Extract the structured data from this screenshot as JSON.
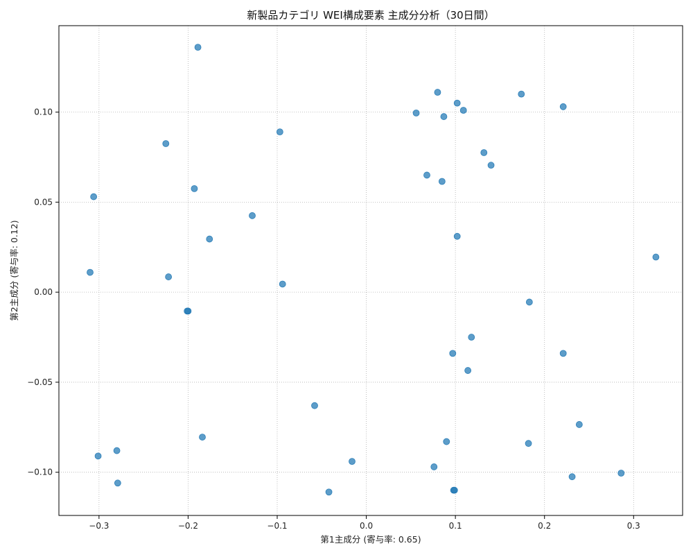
{
  "chart_data": {
    "type": "scatter",
    "title": "新製品カテゴリ WEI構成要素 主成分分析（30日間）",
    "xlabel": "第1主成分 (寄与率: 0.65)",
    "ylabel": "第2主成分 (寄与率: 0.12)",
    "xlim": [
      -0.345,
      0.355
    ],
    "ylim": [
      -0.124,
      0.148
    ],
    "x_ticks": [
      -0.3,
      -0.2,
      -0.1,
      0.0,
      0.1,
      0.2,
      0.3
    ],
    "x_tick_labels": [
      "−0.3",
      "−0.2",
      "−0.1",
      "0.0",
      "0.1",
      "0.2",
      "0.3"
    ],
    "y_ticks": [
      -0.1,
      -0.05,
      0.0,
      0.05,
      0.1
    ],
    "y_tick_labels": [
      "−0.10",
      "−0.05",
      "0.00",
      "0.05",
      "0.10"
    ],
    "grid": true,
    "marker_color": "#1f77b4",
    "points": [
      {
        "x": -0.189,
        "y": 0.136
      },
      {
        "x": 0.08,
        "y": 0.111
      },
      {
        "x": 0.174,
        "y": 0.11
      },
      {
        "x": 0.102,
        "y": 0.105
      },
      {
        "x": 0.221,
        "y": 0.103
      },
      {
        "x": 0.109,
        "y": 0.101
      },
      {
        "x": 0.056,
        "y": 0.0995
      },
      {
        "x": 0.087,
        "y": 0.0975
      },
      {
        "x": -0.097,
        "y": 0.089
      },
      {
        "x": -0.225,
        "y": 0.0825
      },
      {
        "x": 0.132,
        "y": 0.0775
      },
      {
        "x": 0.14,
        "y": 0.0705
      },
      {
        "x": 0.068,
        "y": 0.065
      },
      {
        "x": 0.085,
        "y": 0.0615
      },
      {
        "x": -0.193,
        "y": 0.0575
      },
      {
        "x": -0.306,
        "y": 0.053
      },
      {
        "x": -0.128,
        "y": 0.0425
      },
      {
        "x": -0.176,
        "y": 0.0295
      },
      {
        "x": 0.102,
        "y": 0.031
      },
      {
        "x": 0.325,
        "y": 0.0195
      },
      {
        "x": -0.31,
        "y": 0.011
      },
      {
        "x": -0.222,
        "y": 0.0085
      },
      {
        "x": -0.094,
        "y": 0.0045
      },
      {
        "x": 0.183,
        "y": -0.0055
      },
      {
        "x": -0.201,
        "y": -0.0105
      },
      {
        "x": -0.2,
        "y": -0.0105
      },
      {
        "x": 0.118,
        "y": -0.025
      },
      {
        "x": 0.097,
        "y": -0.034
      },
      {
        "x": 0.221,
        "y": -0.034
      },
      {
        "x": 0.114,
        "y": -0.0435
      },
      {
        "x": -0.058,
        "y": -0.063
      },
      {
        "x": 0.239,
        "y": -0.0735
      },
      {
        "x": -0.184,
        "y": -0.0805
      },
      {
        "x": 0.09,
        "y": -0.083
      },
      {
        "x": 0.182,
        "y": -0.084
      },
      {
        "x": -0.28,
        "y": -0.088
      },
      {
        "x": -0.301,
        "y": -0.091
      },
      {
        "x": -0.016,
        "y": -0.094
      },
      {
        "x": 0.076,
        "y": -0.097
      },
      {
        "x": 0.286,
        "y": -0.1005
      },
      {
        "x": 0.231,
        "y": -0.1025
      },
      {
        "x": -0.279,
        "y": -0.106
      },
      {
        "x": 0.098,
        "y": -0.11
      },
      {
        "x": 0.099,
        "y": -0.11
      },
      {
        "x": -0.042,
        "y": -0.111
      }
    ]
  }
}
